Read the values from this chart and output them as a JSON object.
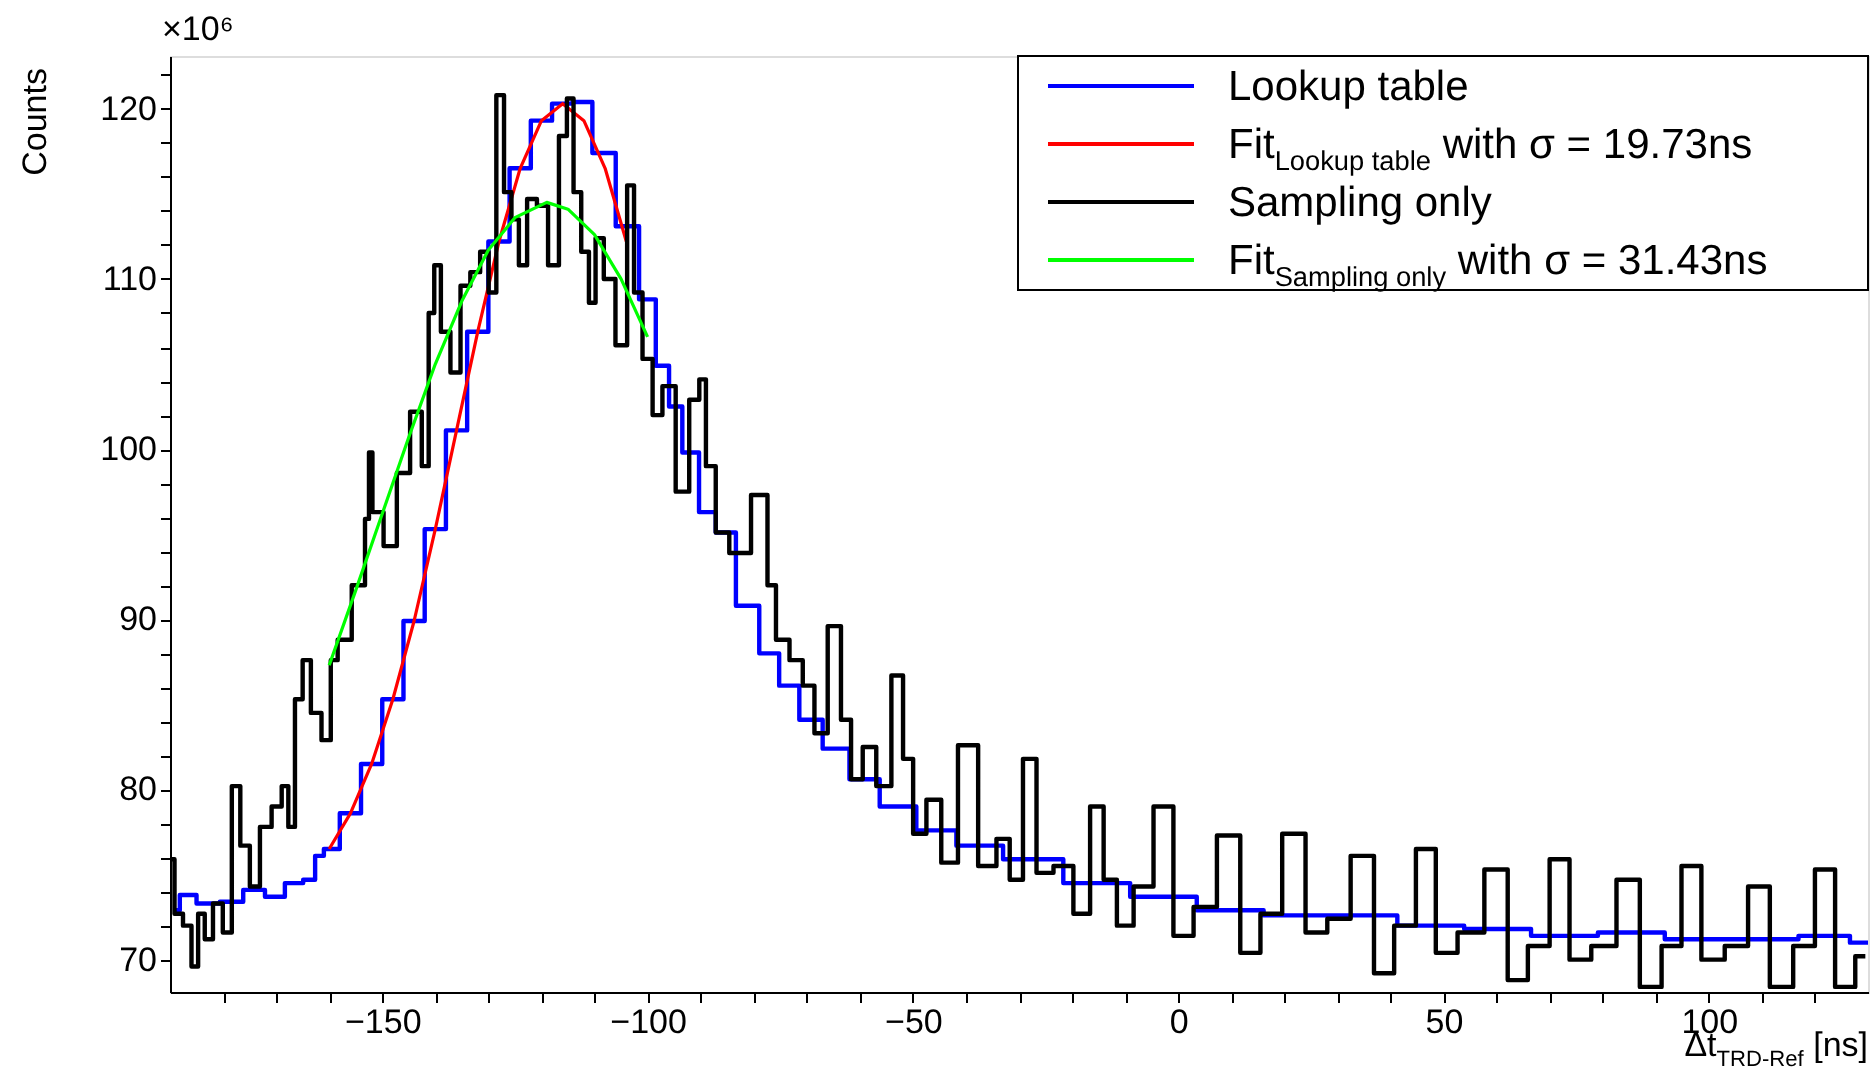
{
  "chart_data": {
    "type": "step",
    "xlabel": "Δt$_{TRD-Ref}$ [ns]",
    "ylabel": "Counts",
    "annotations": [
      "×10⁶"
    ],
    "xlim": [
      -190,
      130
    ],
    "ylim": [
      68.1,
      123.1
    ],
    "xticks": [
      {
        "value": -180,
        "label": null
      },
      {
        "value": -170,
        "label": null
      },
      {
        "value": -160,
        "label": null
      },
      -150,
      {
        "value": -140,
        "label": null
      },
      {
        "value": -130,
        "label": null
      },
      {
        "value": -120,
        "label": null
      },
      {
        "value": -110,
        "label": null
      },
      -100,
      {
        "value": -90,
        "label": null
      },
      {
        "value": -80,
        "label": null
      },
      {
        "value": -70,
        "label": null
      },
      {
        "value": -60,
        "label": null
      },
      -50,
      {
        "value": -40,
        "label": null
      },
      {
        "value": -30,
        "label": null
      },
      {
        "value": -20,
        "label": null
      },
      {
        "value": -10,
        "label": null
      },
      0,
      {
        "value": 10,
        "label": null
      },
      {
        "value": 20,
        "label": null
      },
      {
        "value": 30,
        "label": null
      },
      {
        "value": 40,
        "label": null
      },
      50,
      {
        "value": 60,
        "label": null
      },
      {
        "value": 70,
        "label": null
      },
      {
        "value": 80,
        "label": null
      },
      {
        "value": 90,
        "label": null
      },
      100,
      {
        "value": 110,
        "label": null
      },
      {
        "value": 120,
        "label": null
      }
    ],
    "yticks": [
      70,
      {
        "value": 72,
        "label": null
      },
      {
        "value": 74,
        "label": null
      },
      {
        "value": 76,
        "label": null
      },
      {
        "value": 78,
        "label": null
      },
      80,
      {
        "value": 82,
        "label": null
      },
      {
        "value": 84,
        "label": null
      },
      {
        "value": 86,
        "label": null
      },
      {
        "value": 88,
        "label": null
      },
      90,
      {
        "value": 92,
        "label": null
      },
      {
        "value": 94,
        "label": null
      },
      {
        "value": 96,
        "label": null
      },
      {
        "value": 98,
        "label": null
      },
      100,
      {
        "value": 102,
        "label": null
      },
      {
        "value": 104,
        "label": null
      },
      {
        "value": 106,
        "label": null
      },
      {
        "value": 108,
        "label": null
      },
      110,
      {
        "value": 112,
        "label": null
      },
      {
        "value": 114,
        "label": null
      },
      {
        "value": 116,
        "label": null
      },
      {
        "value": 118,
        "label": null
      },
      120,
      {
        "value": 122,
        "label": null
      }
    ],
    "grid": false,
    "legend": "top right",
    "series": [
      {
        "name": "Lookup table",
        "type": "step",
        "color": "#0000ff",
        "x": [
          -189.1,
          -187.2,
          -182.8,
          -178.4,
          -174,
          -170.2,
          -166.5,
          -163.3,
          -162,
          -160,
          -156,
          -152,
          -148,
          -144,
          -140,
          -136,
          -132,
          -128,
          -124,
          -120,
          -116,
          -112.3,
          -108.5,
          -103.5,
          -99.7,
          -97.2,
          -94.7,
          -92.2,
          -88.4,
          -85.9,
          -80.8,
          -77.1,
          -73.3,
          -69.5,
          -64.5,
          -59.4,
          -53.1,
          -45.6,
          -38,
          -28,
          -15.3,
          -2.8,
          9.8,
          22.4,
          35,
          47.6,
          60.2,
          72.8,
          85.4,
          98,
          110.6,
          123.2,
          130
        ],
        "values": [
          72.9,
          73.8,
          73.3,
          73.4,
          74.1,
          73.7,
          74.5,
          74.7,
          76.1,
          76.5,
          78.6,
          81.5,
          85.3,
          89.9,
          95.3,
          101.1,
          106.9,
          112.2,
          116.5,
          119.3,
          120.3,
          120.4,
          117.4,
          113.1,
          108.8,
          104.9,
          102.5,
          99.8,
          96.3,
          95.1,
          90.8,
          88.0,
          86.1,
          84.1,
          82.4,
          80.6,
          79.0,
          77.6,
          76.7,
          75.9,
          74.5,
          73.7,
          72.9,
          72.6,
          72.6,
          72.0,
          71.8,
          71.4,
          71.6,
          71.2,
          71.2,
          71.4,
          71.0
        ]
      },
      {
        "name": "Fit$_{Lookup table}$ with σ = 19.73ns",
        "type": "line",
        "color": "#ff0000",
        "x": [
          -160,
          -156,
          -152,
          -148,
          -144,
          -140,
          -136,
          -132,
          -128,
          -124,
          -120,
          -116,
          -112,
          -108,
          -104
        ],
        "values": [
          76.5,
          78.6,
          81.5,
          85.3,
          89.9,
          95.3,
          101.1,
          106.9,
          112.2,
          116.5,
          119.3,
          120.3,
          119.3,
          116.5,
          112.2
        ]
      },
      {
        "name": "Sampling only",
        "type": "step",
        "color": "#000000",
        "x": [
          -189.8,
          -188.5,
          -186.6,
          -185.3,
          -184.1,
          -182.8,
          -181,
          -179.1,
          -177.6,
          -175.9,
          -174,
          -172.1,
          -169.6,
          -168.3,
          -167.1,
          -165.8,
          -164.2,
          -162.7,
          -160.2,
          -159.2,
          -157.6,
          -153.9,
          -152.6,
          -152.4,
          -151.3,
          -148.2,
          -146.3,
          -143.2,
          -141.9,
          -140.6,
          -139.8,
          -138.1,
          -136.2,
          -134.3,
          -132.5,
          -130.6,
          -129.3,
          -127.7,
          -126.4,
          -124.9,
          -123.6,
          -121.8,
          -119.9,
          -117.6,
          -115.8,
          -114.6,
          -113.3,
          -111.7,
          -110.4,
          -109.2,
          -107.3,
          -104.8,
          -102.9,
          -102.2,
          -99.7,
          -98.4,
          -96,
          -93.4,
          -90.9,
          -89.6,
          -88.4,
          -85.9,
          -83.3,
          -77.7,
          -77.1,
          -74.5,
          -72,
          -69.5,
          -67.6,
          -64.5,
          -62.6,
          -60.7,
          -58.2,
          -55.6,
          -52.5,
          -51.2,
          -48.7,
          -46.2,
          -43.1,
          -39.9,
          -35.5,
          -33,
          -30.5,
          -28,
          -25.4,
          -21.6,
          -17.9,
          -15.3,
          -12.8,
          -10.3,
          -6.5,
          -2.8,
          1,
          4.8,
          9.8,
          13.6,
          17.4,
          21.8,
          26.2,
          30,
          35,
          38.8,
          42.6,
          47,
          50.1,
          55.2,
          60.2,
          64,
          67.8,
          72.2,
          75.3,
          80.4,
          84.8,
          89.2,
          93,
          96.7,
          100.5,
          105.5,
          109.3,
          113.7,
          118.1,
          121.9,
          125.7,
          129.5
        ],
        "values": [
          75.9,
          72.7,
          72.0,
          69.6,
          72.7,
          71.2,
          73.3,
          71.6,
          80.2,
          76.7,
          74.3,
          77.8,
          79.0,
          80.2,
          77.8,
          85.3,
          87.6,
          84.5,
          82.9,
          87.6,
          88.8,
          92.0,
          95.9,
          99.8,
          96.3,
          94.3,
          98.6,
          102.2,
          99.0,
          108.0,
          110.8,
          106.9,
          104.5,
          109.6,
          110.4,
          111.6,
          109.2,
          120.8,
          115.1,
          113.5,
          110.8,
          114.7,
          114.3,
          110.8,
          118.4,
          120.6,
          115.1,
          111.6,
          108.6,
          112.4,
          110.0,
          106.1,
          115.5,
          109.2,
          105.3,
          102.0,
          103.7,
          97.5,
          102.9,
          104.1,
          99.0,
          95.1,
          93.9,
          97.3,
          92.0,
          88.8,
          87.6,
          86.1,
          83.3,
          89.6,
          84.1,
          80.6,
          82.5,
          80.2,
          86.7,
          81.8,
          77.4,
          79.4,
          75.7,
          82.6,
          75.5,
          77.1,
          74.7,
          81.8,
          75.1,
          75.5,
          72.7,
          79.0,
          74.7,
          72.0,
          74.3,
          79.0,
          71.4,
          73.1,
          77.3,
          70.4,
          72.7,
          77.4,
          71.6,
          72.4,
          76.1,
          69.2,
          72.0,
          76.5,
          70.4,
          71.6,
          75.3,
          68.8,
          70.8,
          75.9,
          70.0,
          70.8,
          74.7,
          68.4,
          70.8,
          75.5,
          70.0,
          70.8,
          74.3,
          68.4,
          70.8,
          75.3,
          68.4,
          70.2
        ]
      },
      {
        "name": "Fit$_{Sampling only}$ with σ = 31.43ns",
        "type": "line",
        "color": "#00ff00",
        "x": [
          -160,
          -155,
          -150,
          -145,
          -140,
          -135,
          -130,
          -125,
          -119,
          -115,
          -110,
          -105,
          -100
        ],
        "values": [
          87.3,
          91.7,
          96.2,
          100.7,
          105.0,
          108.7,
          111.7,
          113.6,
          114.5,
          114.1,
          112.6,
          110.0,
          106.6
        ]
      }
    ]
  }
}
